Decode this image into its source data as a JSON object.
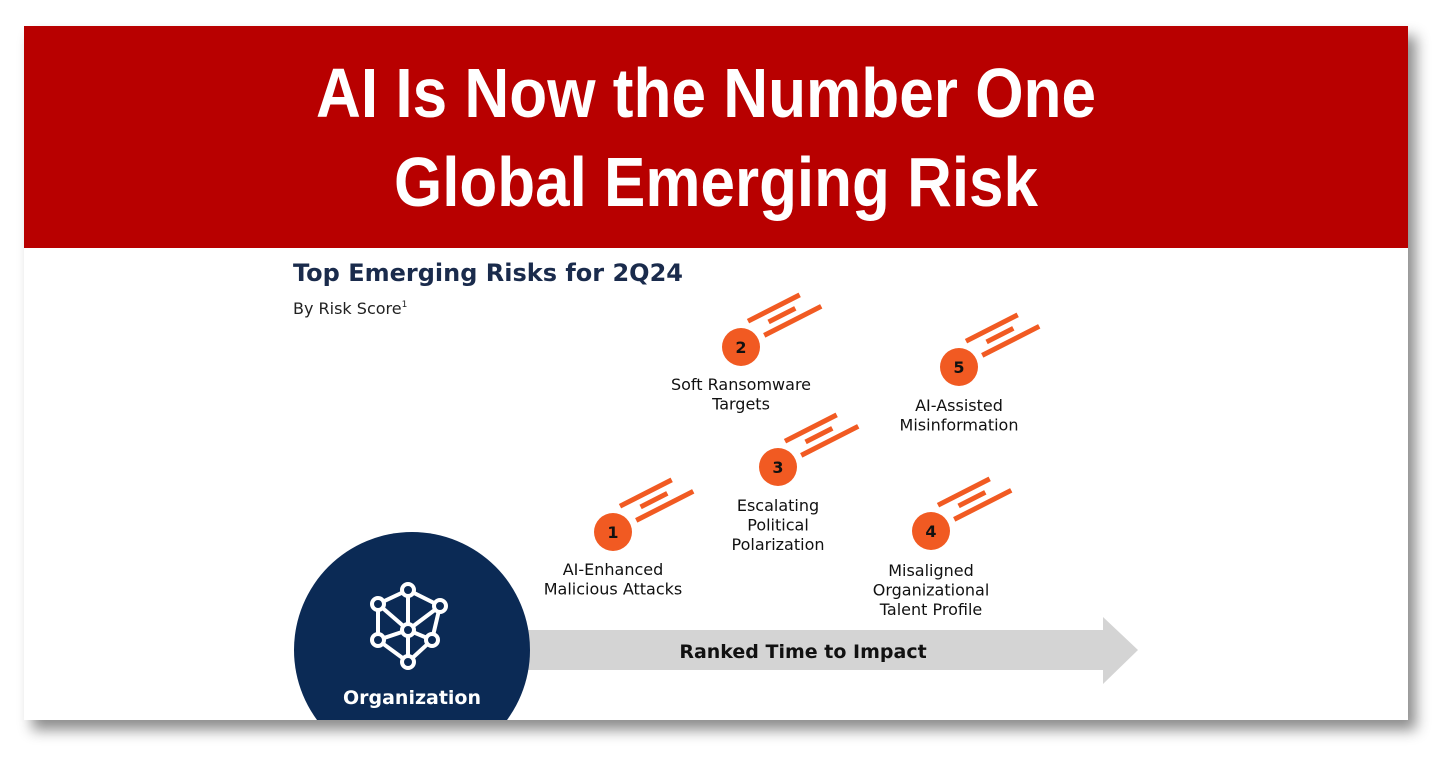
{
  "header": {
    "title_lines": [
      "AI Is Now the Number One",
      "Global Emerging Risk"
    ]
  },
  "chart": {
    "title": "Top Emerging Risks for 2Q24",
    "subtitle": "By Risk Score",
    "subtitle_note": "1",
    "risks": [
      {
        "rank": "1",
        "label_lines": [
          "AI-Enhanced",
          "Malicious Attacks"
        ]
      },
      {
        "rank": "2",
        "label_lines": [
          "Soft Ransomware",
          "Targets"
        ]
      },
      {
        "rank": "3",
        "label_lines": [
          "Escalating",
          "Political",
          "Polarization"
        ]
      },
      {
        "rank": "4",
        "label_lines": [
          "Misaligned",
          "Organizational",
          "Talent Profile"
        ]
      },
      {
        "rank": "5",
        "label_lines": [
          "AI-Assisted",
          "Misinformation"
        ]
      }
    ],
    "origin_label": "Organization",
    "arrow_label": "Ranked Time to Impact"
  }
}
